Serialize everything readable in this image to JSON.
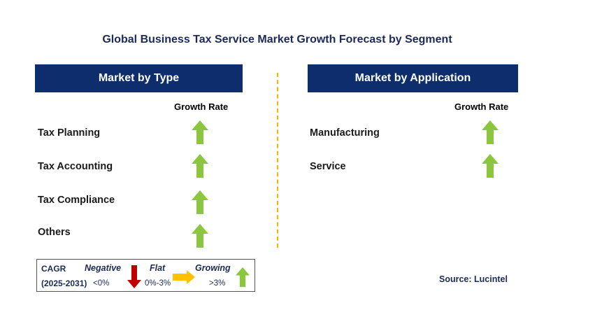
{
  "title": "Global Business Tax Service Market Growth Forecast by Segment",
  "colors": {
    "header_bg": "#0d2d6c",
    "growing": "#8cc63f",
    "negative": "#c00000",
    "flat": "#ffc000",
    "divider": "#f5b400"
  },
  "type_panel": {
    "header": "Market by Type",
    "growth_rate_label": "Growth Rate",
    "rows": [
      {
        "label": "Tax Planning",
        "trend": "growing"
      },
      {
        "label": "Tax Accounting",
        "trend": "growing"
      },
      {
        "label": "Tax Compliance",
        "trend": "growing"
      },
      {
        "label": "Others",
        "trend": "growing"
      }
    ]
  },
  "application_panel": {
    "header": "Market by Application",
    "growth_rate_label": "Growth Rate",
    "rows": [
      {
        "label": "Manufacturing",
        "trend": "growing"
      },
      {
        "label": "Service",
        "trend": "growing"
      }
    ]
  },
  "legend": {
    "cagr_label": "CAGR",
    "period": "(2025-2031)",
    "negative_label": "Negative",
    "negative_value": "<0%",
    "flat_label": "Flat",
    "flat_value": "0%-3%",
    "growing_label": "Growing",
    "growing_value": ">3%",
    "icons": [
      "arrow-down-red-icon",
      "arrow-right-yellow-icon",
      "arrow-up-green-icon"
    ]
  },
  "source": "Source: Lucintel"
}
